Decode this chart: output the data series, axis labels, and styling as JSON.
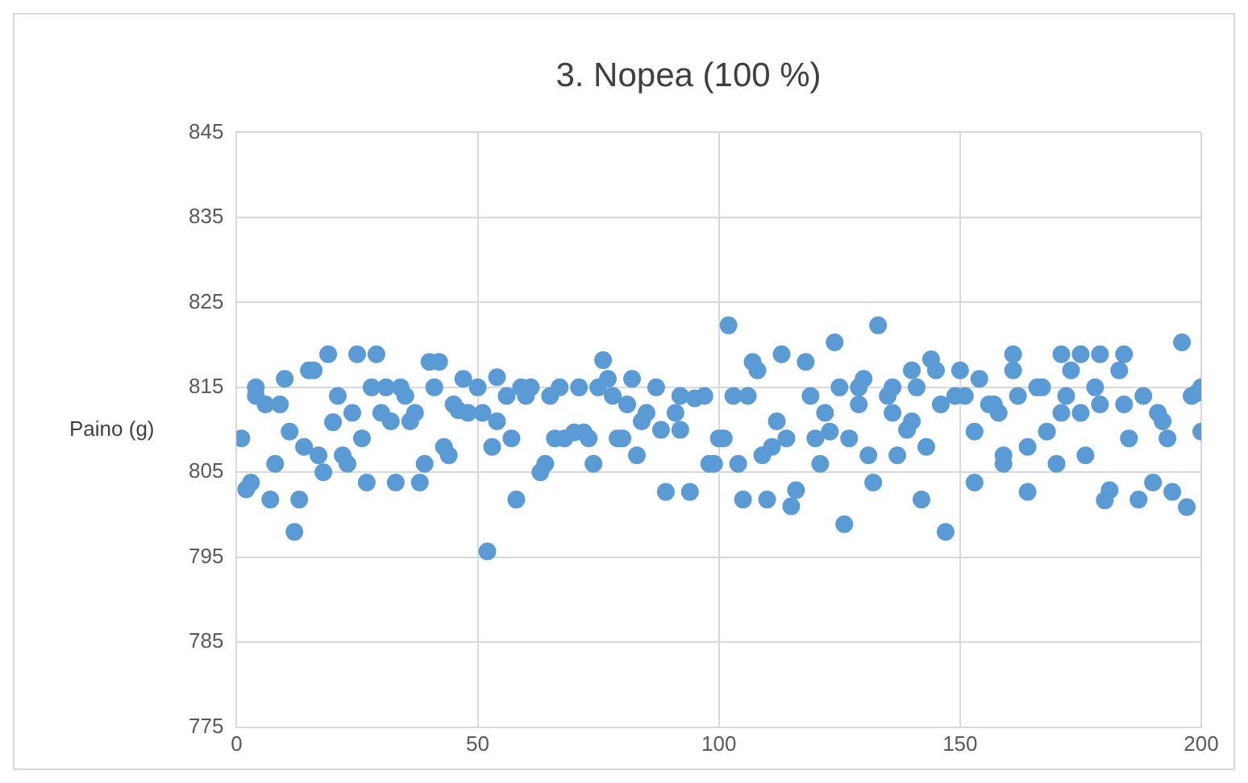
{
  "chart_data": {
    "type": "scatter",
    "title": "3. Nopea (100 %)",
    "ylabel": "Paino (g)",
    "color": "#5b9bd5",
    "marker": "circle",
    "grid": true,
    "xlim": [
      0,
      200
    ],
    "xticks": [
      0,
      50,
      100,
      150,
      200
    ],
    "ylim": [
      775,
      845
    ],
    "yticks": [
      775,
      785,
      795,
      805,
      815,
      825,
      835,
      845
    ],
    "x": [
      1,
      2,
      3,
      4,
      4,
      6,
      7,
      8,
      9,
      10,
      11,
      12,
      13,
      14,
      15,
      16,
      17,
      18,
      19,
      20,
      21,
      22,
      23,
      24,
      25,
      26,
      27,
      28,
      29,
      30,
      31,
      32,
      33,
      34,
      35,
      36,
      37,
      38,
      39,
      40,
      41,
      42,
      43,
      44,
      45,
      46,
      47,
      48,
      50,
      51,
      52,
      53,
      54,
      54,
      56,
      57,
      58,
      59,
      60,
      61,
      63,
      64,
      65,
      66,
      67,
      68,
      70,
      71,
      72,
      73,
      74,
      75,
      76,
      77,
      78,
      79,
      80,
      81,
      82,
      83,
      84,
      85,
      87,
      88,
      89,
      91,
      92,
      92,
      94,
      95,
      97,
      98,
      99,
      100,
      101,
      102,
      103,
      104,
      105,
      106,
      107,
      108,
      109,
      110,
      111,
      112,
      113,
      114,
      115,
      116,
      118,
      119,
      120,
      121,
      122,
      123,
      124,
      125,
      126,
      127,
      129,
      129,
      130,
      131,
      132,
      133,
      135,
      136,
      136,
      137,
      139,
      140,
      140,
      141,
      142,
      143,
      144,
      145,
      146,
      147,
      149,
      150,
      151,
      153,
      153,
      154,
      156,
      157,
      158,
      159,
      159,
      161,
      161,
      162,
      164,
      164,
      166,
      167,
      168,
      170,
      171,
      171,
      172,
      173,
      175,
      175,
      176,
      178,
      179,
      179,
      180,
      181,
      183,
      184,
      184,
      185,
      187,
      188,
      190,
      191,
      192,
      193,
      194,
      196,
      197,
      198,
      199,
      200,
      200
    ],
    "values": [
      809,
      803,
      803.8,
      815,
      814,
      813,
      801.8,
      806,
      813,
      816,
      809.8,
      798,
      801.8,
      808,
      817,
      817,
      807,
      805,
      818.9,
      810.9,
      814,
      807,
      806,
      812,
      818.9,
      809,
      803.8,
      815,
      818.9,
      812,
      815,
      811,
      803.8,
      815,
      814,
      811,
      812,
      803.8,
      806,
      818,
      815,
      818,
      808,
      807,
      813,
      812.3,
      816,
      812,
      815,
      812,
      795.7,
      808,
      811,
      816.2,
      814,
      809,
      801.8,
      815,
      814,
      815,
      805,
      806,
      814,
      809,
      815,
      809,
      809.7,
      815,
      809.7,
      809,
      806,
      815,
      818.2,
      816,
      814,
      809,
      809,
      813,
      816,
      807,
      811,
      812,
      815,
      810,
      802.7,
      812,
      814,
      810,
      802.7,
      813.7,
      814,
      806,
      806,
      809,
      809,
      822.3,
      814,
      806,
      801.8,
      814,
      818,
      817,
      807,
      801.8,
      808,
      811,
      818.9,
      809,
      801,
      802.9,
      818,
      814,
      809,
      806,
      812,
      809.8,
      820.3,
      815,
      798.9,
      809,
      815,
      813,
      816,
      807,
      803.8,
      822.3,
      814,
      815,
      812,
      807,
      810,
      811,
      817,
      815,
      801.8,
      808,
      818.3,
      817,
      813,
      798,
      814,
      817,
      814,
      809.8,
      803.8,
      816,
      813,
      813,
      812,
      806,
      807,
      817,
      818.9,
      814,
      802.7,
      808,
      815,
      815,
      809.8,
      806,
      812,
      818.9,
      814,
      817,
      818.9,
      812,
      807,
      815,
      813,
      818.9,
      801.7,
      802.9,
      817,
      818.9,
      813,
      809,
      801.8,
      814,
      803.8,
      812,
      811,
      809,
      802.7,
      820.3,
      800.9,
      814,
      814.3,
      815,
      809.8
    ]
  }
}
